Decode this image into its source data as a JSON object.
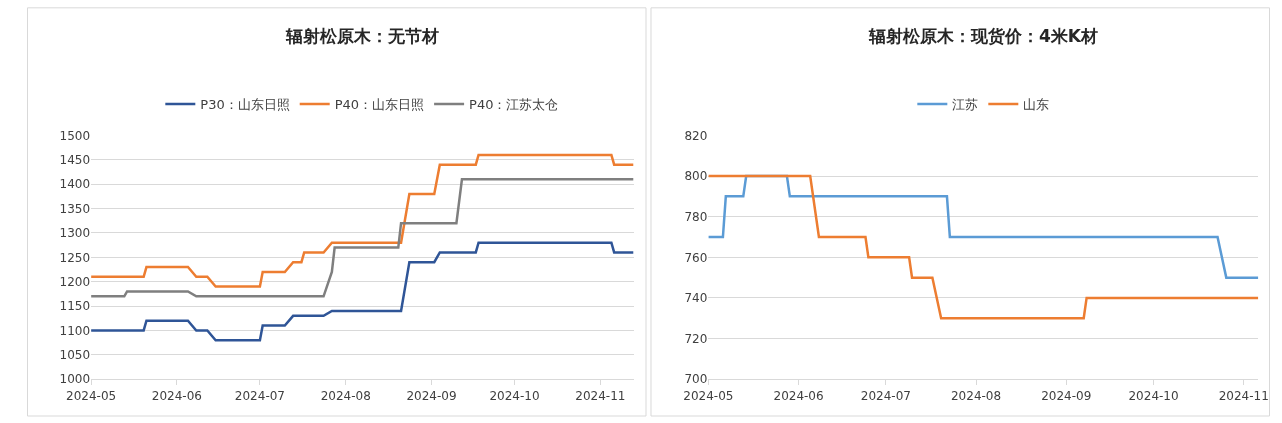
{
  "chart_data": [
    {
      "type": "line",
      "title": "辐射松原木：无节材",
      "legend": "top",
      "grid": "y",
      "marker": "none",
      "line_style": "solid",
      "xlim": [
        "2024-05-01",
        "2024-11-13"
      ],
      "xticks": [
        {
          "value": "2024-05-01",
          "label": "2024-05"
        },
        {
          "value": "2024-06-01",
          "label": "2024-06"
        },
        {
          "value": "2024-07-01",
          "label": "2024-07"
        },
        {
          "value": "2024-08-01",
          "label": "2024-08"
        },
        {
          "value": "2024-09-01",
          "label": "2024-09"
        },
        {
          "value": "2024-10-01",
          "label": "2024-10"
        },
        {
          "value": "2024-11-01",
          "label": "2024-11"
        }
      ],
      "ylim": [
        1000,
        1500
      ],
      "yticks": [
        1000,
        1050,
        1100,
        1150,
        1200,
        1250,
        1300,
        1350,
        1400,
        1450,
        1500
      ],
      "series": [
        {
          "name": "P30：山东日照",
          "color": "#2f5597",
          "x": [
            "2024-05-01",
            "2024-05-20",
            "2024-05-21",
            "2024-06-05",
            "2024-06-08",
            "2024-06-12",
            "2024-06-15",
            "2024-07-01",
            "2024-07-02",
            "2024-07-10",
            "2024-07-13",
            "2024-07-24",
            "2024-07-27",
            "2024-08-21",
            "2024-08-24",
            "2024-09-02",
            "2024-09-04",
            "2024-09-17",
            "2024-09-18",
            "2024-11-05",
            "2024-11-06",
            "2024-11-13"
          ],
          "values": [
            1100,
            1100,
            1120,
            1120,
            1100,
            1100,
            1080,
            1080,
            1110,
            1110,
            1130,
            1130,
            1140,
            1140,
            1240,
            1240,
            1260,
            1260,
            1280,
            1280,
            1260,
            1260
          ]
        },
        {
          "name": "P40：山东日照",
          "color": "#ed7d31",
          "x": [
            "2024-05-01",
            "2024-05-20",
            "2024-05-21",
            "2024-06-05",
            "2024-06-08",
            "2024-06-12",
            "2024-06-15",
            "2024-07-01",
            "2024-07-02",
            "2024-07-10",
            "2024-07-13",
            "2024-07-16",
            "2024-07-17",
            "2024-07-24",
            "2024-07-27",
            "2024-08-21",
            "2024-08-24",
            "2024-09-02",
            "2024-09-04",
            "2024-09-17",
            "2024-09-18",
            "2024-11-05",
            "2024-11-06",
            "2024-11-13"
          ],
          "values": [
            1210,
            1210,
            1230,
            1230,
            1210,
            1210,
            1190,
            1190,
            1220,
            1220,
            1240,
            1240,
            1260,
            1260,
            1280,
            1280,
            1380,
            1380,
            1440,
            1440,
            1460,
            1460,
            1440,
            1440
          ]
        },
        {
          "name": "P40：江苏太仓",
          "color": "#7f7f7f",
          "x": [
            "2024-05-01",
            "2024-05-13",
            "2024-05-14",
            "2024-06-05",
            "2024-06-08",
            "2024-07-24",
            "2024-07-27",
            "2024-07-28",
            "2024-08-20",
            "2024-08-21",
            "2024-09-10",
            "2024-09-12",
            "2024-11-13"
          ],
          "values": [
            1170,
            1170,
            1180,
            1180,
            1170,
            1170,
            1220,
            1270,
            1270,
            1320,
            1320,
            1410,
            1410
          ]
        }
      ]
    },
    {
      "type": "line",
      "title": "辐射松原木：现货价：4米K材",
      "legend": "top",
      "grid": "y",
      "marker": "none",
      "line_style": "solid",
      "xlim": [
        "2024-05-01",
        "2024-11-06"
      ],
      "xticks": [
        {
          "value": "2024-05-01",
          "label": "2024-05"
        },
        {
          "value": "2024-06-01",
          "label": "2024-06"
        },
        {
          "value": "2024-07-01",
          "label": "2024-07"
        },
        {
          "value": "2024-08-01",
          "label": "2024-08"
        },
        {
          "value": "2024-09-01",
          "label": "2024-09"
        },
        {
          "value": "2024-10-01",
          "label": "2024-10"
        },
        {
          "value": "2024-11-01",
          "label": "2024-11"
        }
      ],
      "ylim": [
        700,
        820
      ],
      "yticks": [
        700,
        720,
        740,
        760,
        780,
        800,
        820
      ],
      "series": [
        {
          "name": "江苏",
          "color": "#5b9bd5",
          "x": [
            "2024-05-01",
            "2024-05-06",
            "2024-05-07",
            "2024-05-13",
            "2024-05-14",
            "2024-05-28",
            "2024-05-29",
            "2024-07-22",
            "2024-07-23",
            "2024-10-23",
            "2024-10-26",
            "2024-11-06"
          ],
          "values": [
            770,
            770,
            790,
            790,
            800,
            800,
            790,
            790,
            770,
            770,
            750,
            750
          ]
        },
        {
          "name": "山东",
          "color": "#ed7d31",
          "x": [
            "2024-05-01",
            "2024-06-05",
            "2024-06-08",
            "2024-06-24",
            "2024-06-25",
            "2024-07-09",
            "2024-07-10",
            "2024-07-17",
            "2024-07-20",
            "2024-09-07",
            "2024-09-08",
            "2024-11-06"
          ],
          "values": [
            800,
            800,
            770,
            770,
            760,
            760,
            750,
            750,
            730,
            730,
            740,
            740
          ]
        }
      ]
    }
  ]
}
